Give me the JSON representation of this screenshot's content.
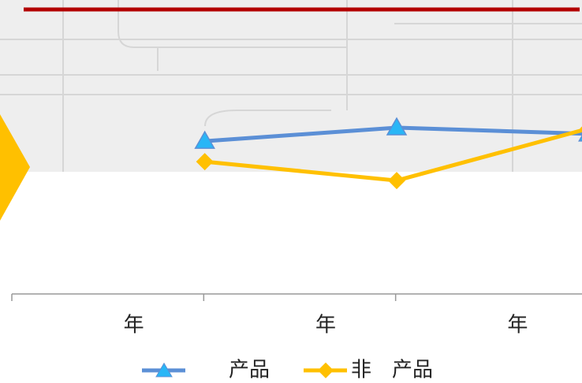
{
  "chart_data": {
    "type": "line",
    "categories": [
      "年",
      "年",
      "年"
    ],
    "series": [
      {
        "name": "产品",
        "color": "#5b8fd6",
        "marker": "triangle",
        "values": [
          71,
          77.3,
          74.4
        ]
      },
      {
        "name": "非　产品",
        "color": "#ffc000",
        "marker": "diamond",
        "values": [
          61.5,
          52.7,
          76.9
        ]
      }
    ],
    "ylim": [
      0,
      100
    ]
  }
}
